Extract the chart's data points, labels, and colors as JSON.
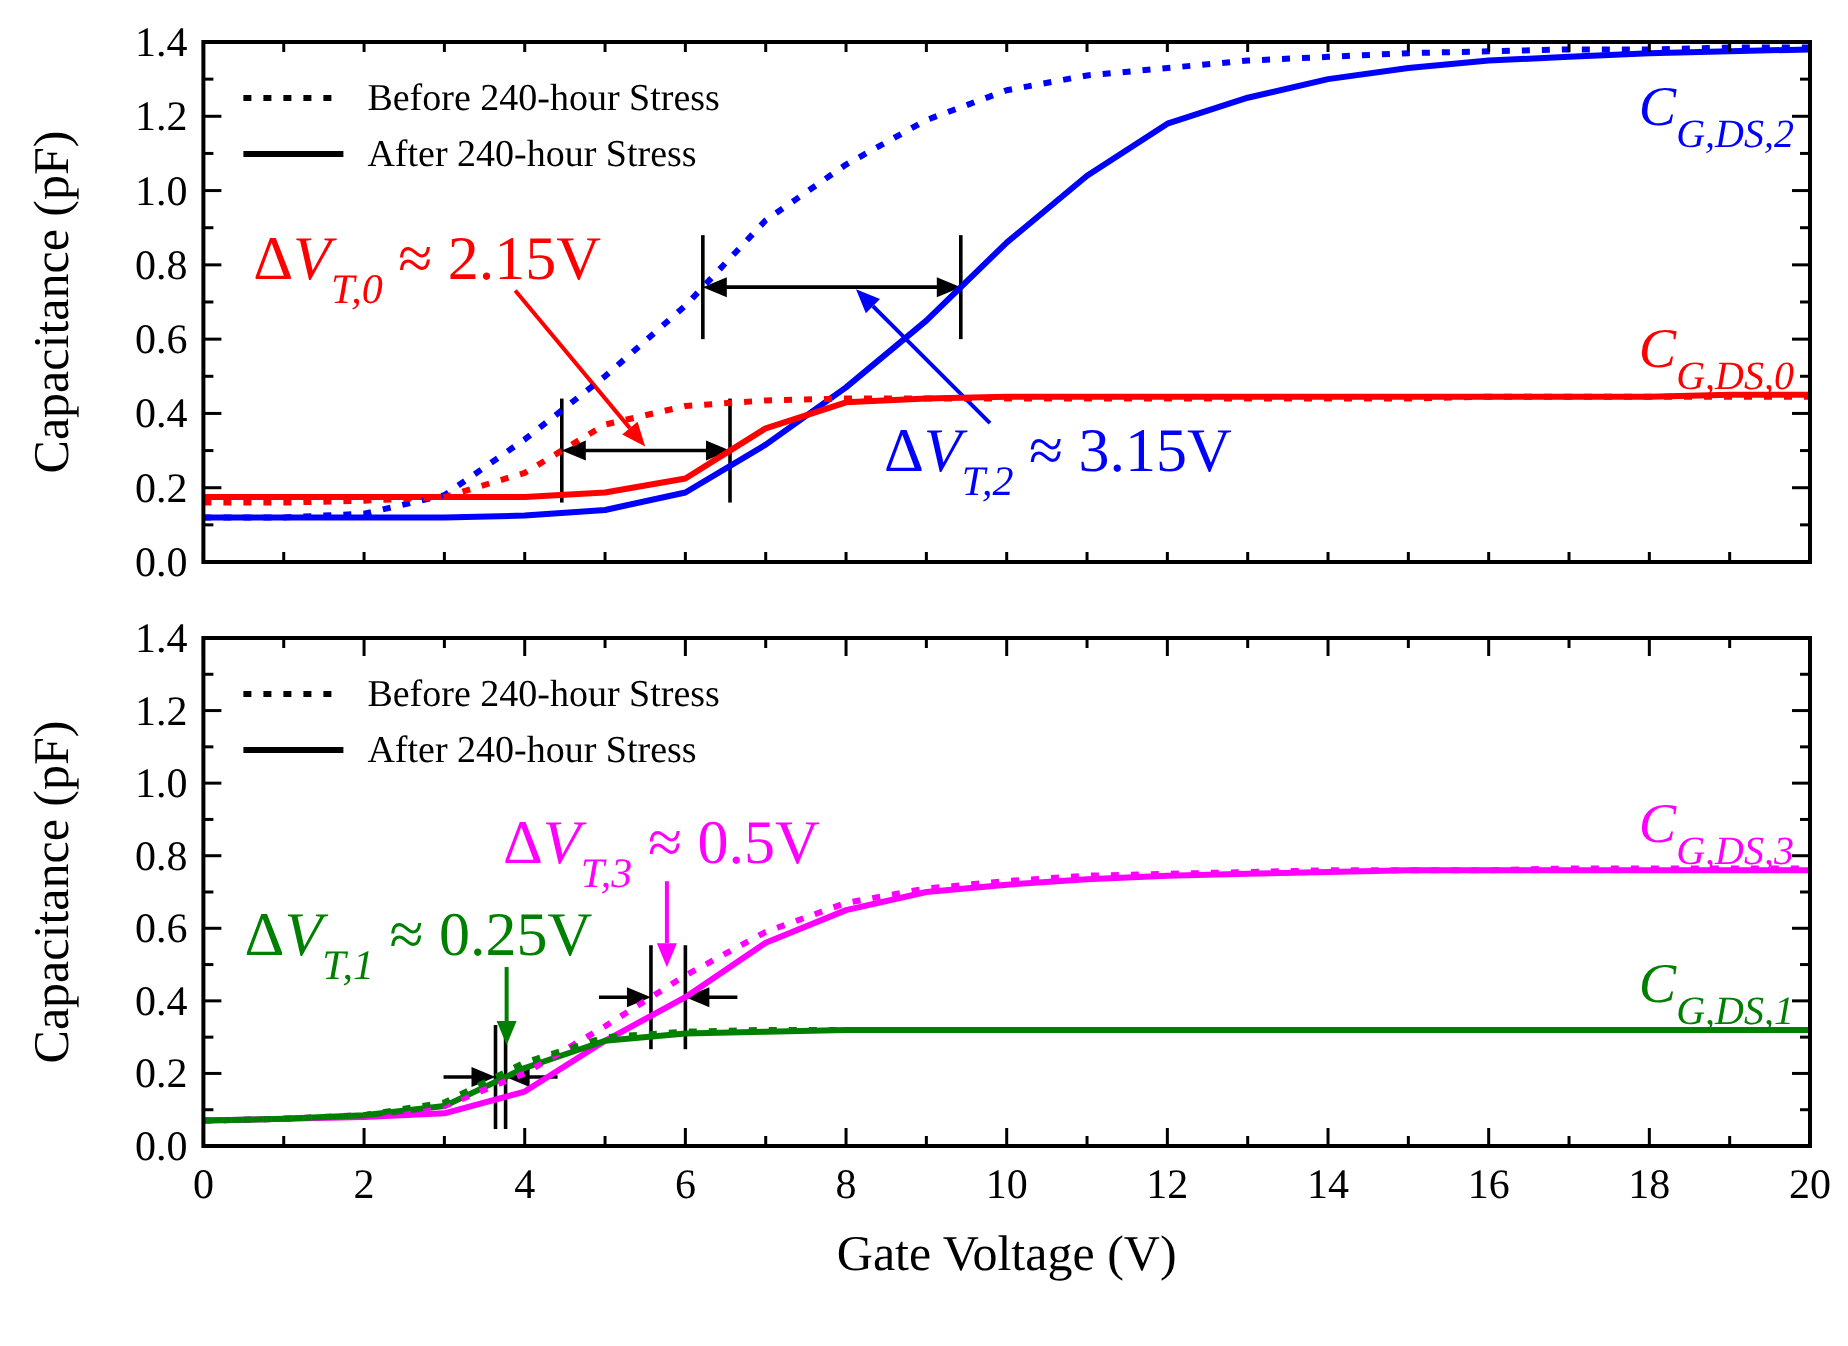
{
  "chart_data": [
    {
      "type": "line",
      "ylabel": "Capacitance (pF)",
      "tick_labels": "y",
      "x": [
        0,
        1,
        2,
        3,
        4,
        5,
        6,
        7,
        8,
        9,
        10,
        11,
        12,
        13,
        14,
        15,
        16,
        17,
        18,
        19,
        20
      ],
      "xlim": [
        0,
        20
      ],
      "xticks": [
        {
          "value": 0,
          "label": null
        },
        {
          "value": 1,
          "label": null
        },
        {
          "value": 2,
          "label": null
        },
        {
          "value": 3,
          "label": null
        },
        {
          "value": 4,
          "label": null
        },
        {
          "value": 5,
          "label": null
        },
        {
          "value": 6,
          "label": null
        },
        {
          "value": 7,
          "label": null
        },
        {
          "value": 8,
          "label": null
        },
        {
          "value": 9,
          "label": null
        },
        {
          "value": 10,
          "label": null
        },
        {
          "value": 11,
          "label": null
        },
        {
          "value": 12,
          "label": null
        },
        {
          "value": 13,
          "label": null
        },
        {
          "value": 14,
          "label": null
        },
        {
          "value": 15,
          "label": null
        },
        {
          "value": 16,
          "label": null
        },
        {
          "value": 17,
          "label": null
        },
        {
          "value": 18,
          "label": null
        },
        {
          "value": 19,
          "label": null
        },
        {
          "value": 20,
          "label": null
        }
      ],
      "ylim": [
        0,
        1.4
      ],
      "yticks": [
        {
          "value": 0,
          "label": "0.0"
        },
        {
          "value": 0.1,
          "label": null
        },
        {
          "value": 0.2,
          "label": "0.2"
        },
        {
          "value": 0.3,
          "label": null
        },
        {
          "value": 0.4,
          "label": "0.4"
        },
        {
          "value": 0.5,
          "label": null
        },
        {
          "value": 0.6,
          "label": "0.6"
        },
        {
          "value": 0.7,
          "label": null
        },
        {
          "value": 0.8,
          "label": "0.8"
        },
        {
          "value": 0.9,
          "label": null
        },
        {
          "value": 1.0,
          "label": "1.0"
        },
        {
          "value": 1.1,
          "label": null
        },
        {
          "value": 1.2,
          "label": "1.2"
        },
        {
          "value": 1.3,
          "label": null
        },
        {
          "value": 1.4,
          "label": "1.4"
        }
      ],
      "series": [
        {
          "color": "#0000ff",
          "line_style": "dotted",
          "values": [
            0.12,
            0.12,
            0.13,
            0.18,
            0.33,
            0.5,
            0.69,
            0.92,
            1.07,
            1.19,
            1.27,
            1.31,
            1.33,
            1.35,
            1.36,
            1.37,
            1.375,
            1.38,
            1.38,
            1.385,
            1.385
          ]
        },
        {
          "name": "C$_{G,DS,2}$",
          "color": "#0000ff",
          "line_style": "solid",
          "values": [
            0.12,
            0.12,
            0.12,
            0.12,
            0.125,
            0.14,
            0.187,
            0.316,
            0.47,
            0.65,
            0.86,
            1.04,
            1.18,
            1.25,
            1.3,
            1.33,
            1.35,
            1.36,
            1.37,
            1.375,
            1.38
          ]
        },
        {
          "color": "#ff0000",
          "line_style": "dotted",
          "values": [
            0.16,
            0.16,
            0.165,
            0.175,
            0.24,
            0.37,
            0.42,
            0.435,
            0.44,
            0.44,
            0.44,
            0.44,
            0.44,
            0.44,
            0.44,
            0.44,
            0.445,
            0.445,
            0.445,
            0.445,
            0.445
          ]
        },
        {
          "name": "C$_{G,DS,0}$",
          "color": "#ff0000",
          "line_style": "solid",
          "values": [
            0.175,
            0.175,
            0.175,
            0.175,
            0.175,
            0.187,
            0.225,
            0.36,
            0.43,
            0.44,
            0.445,
            0.445,
            0.445,
            0.445,
            0.445,
            0.445,
            0.445,
            0.445,
            0.445,
            0.45,
            0.45
          ]
        }
      ],
      "annotations": [
        "Before 240-hour Stress",
        "After 240-hour Stress",
        "ΔV$_{T,0}$ ≈ 2.15V",
        "ΔV$_{T,2}$ ≈ 3.15V"
      ]
    },
    {
      "type": "line",
      "ylabel": "Capacitance (pF)",
      "xlabel": "Gate Voltage (V)",
      "x": [
        0,
        1,
        2,
        3,
        4,
        5,
        6,
        7,
        8,
        9,
        10,
        11,
        12,
        13,
        14,
        15,
        16,
        17,
        18,
        19,
        20
      ],
      "xlim": [
        0,
        20
      ],
      "xticks": [
        0,
        {
          "value": 1,
          "label": null
        },
        2,
        {
          "value": 3,
          "label": null
        },
        4,
        {
          "value": 5,
          "label": null
        },
        6,
        {
          "value": 7,
          "label": null
        },
        8,
        {
          "value": 9,
          "label": null
        },
        10,
        {
          "value": 11,
          "label": null
        },
        12,
        {
          "value": 13,
          "label": null
        },
        14,
        {
          "value": 15,
          "label": null
        },
        16,
        {
          "value": 17,
          "label": null
        },
        18,
        {
          "value": 19,
          "label": null
        },
        20
      ],
      "ylim": [
        0,
        1.4
      ],
      "yticks": [
        {
          "value": 0,
          "label": "0.0"
        },
        {
          "value": 0.1,
          "label": null
        },
        {
          "value": 0.2,
          "label": "0.2"
        },
        {
          "value": 0.3,
          "label": null
        },
        {
          "value": 0.4,
          "label": "0.4"
        },
        {
          "value": 0.5,
          "label": null
        },
        {
          "value": 0.6,
          "label": "0.6"
        },
        {
          "value": 0.7,
          "label": null
        },
        {
          "value": 0.8,
          "label": "0.8"
        },
        {
          "value": 0.9,
          "label": null
        },
        {
          "value": 1.0,
          "label": "1.0"
        },
        {
          "value": 1.1,
          "label": null
        },
        {
          "value": 1.2,
          "label": "1.2"
        },
        {
          "value": 1.3,
          "label": null
        },
        {
          "value": 1.4,
          "label": "1.4"
        }
      ],
      "series": [
        {
          "color": "#ff00ff",
          "line_style": "dotted",
          "values": [
            0.07,
            0.075,
            0.085,
            0.11,
            0.2,
            0.33,
            0.47,
            0.59,
            0.67,
            0.71,
            0.73,
            0.745,
            0.75,
            0.755,
            0.76,
            0.76,
            0.76,
            0.765,
            0.765,
            0.765,
            0.765
          ]
        },
        {
          "name": "C$_{G,DS,3}$",
          "color": "#ff00ff",
          "line_style": "solid",
          "values": [
            0.07,
            0.075,
            0.08,
            0.09,
            0.15,
            0.29,
            0.41,
            0.56,
            0.65,
            0.7,
            0.72,
            0.735,
            0.745,
            0.75,
            0.755,
            0.76,
            0.76,
            0.76,
            0.76,
            0.76,
            0.76
          ]
        },
        {
          "color": "#008000",
          "line_style": "dotted",
          "values": [
            0.07,
            0.075,
            0.085,
            0.12,
            0.23,
            0.3,
            0.315,
            0.32,
            0.32,
            0.32,
            0.32,
            0.32,
            0.32,
            0.32,
            0.32,
            0.32,
            0.32,
            0.32,
            0.32,
            0.32,
            0.32
          ]
        },
        {
          "name": "C$_{G,DS,1}$",
          "color": "#008000",
          "line_style": "solid",
          "values": [
            0.07,
            0.075,
            0.085,
            0.11,
            0.215,
            0.29,
            0.31,
            0.315,
            0.32,
            0.32,
            0.32,
            0.32,
            0.32,
            0.32,
            0.32,
            0.32,
            0.32,
            0.32,
            0.32,
            0.32,
            0.32
          ]
        }
      ],
      "annotations": [
        "Before 240-hour Stress",
        "After 240-hour Stress",
        "ΔV$_{T,1}$ ≈ 0.25V",
        "ΔV$_{T,3}$ ≈ 0.5V"
      ]
    }
  ]
}
